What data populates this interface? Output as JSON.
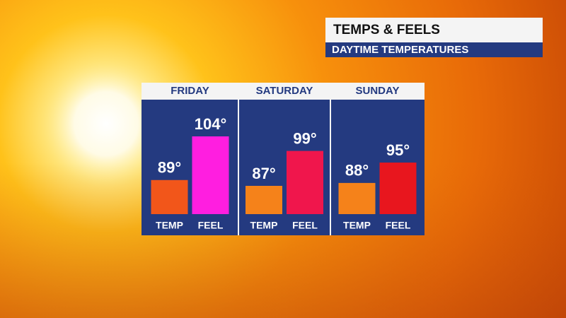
{
  "chart_data": {
    "type": "bar",
    "title": "TEMPS & FEELS",
    "subtitle": "DAYTIME TEMPERATURES",
    "categories": [
      "FRIDAY",
      "SATURDAY",
      "SUNDAY"
    ],
    "series": [
      {
        "name": "TEMP",
        "colors": [
          "#f2561a",
          "#f5821a",
          "#f5821a"
        ],
        "values": [
          89,
          87,
          88
        ],
        "value_labels": [
          "89°",
          "87°",
          "88°"
        ]
      },
      {
        "name": "FEEL",
        "colors": [
          "#ff1ee0",
          "#f0164c",
          "#e8161e"
        ],
        "values": [
          104,
          99,
          95
        ],
        "value_labels": [
          "104°",
          "99°",
          "95°"
        ]
      }
    ]
  }
}
